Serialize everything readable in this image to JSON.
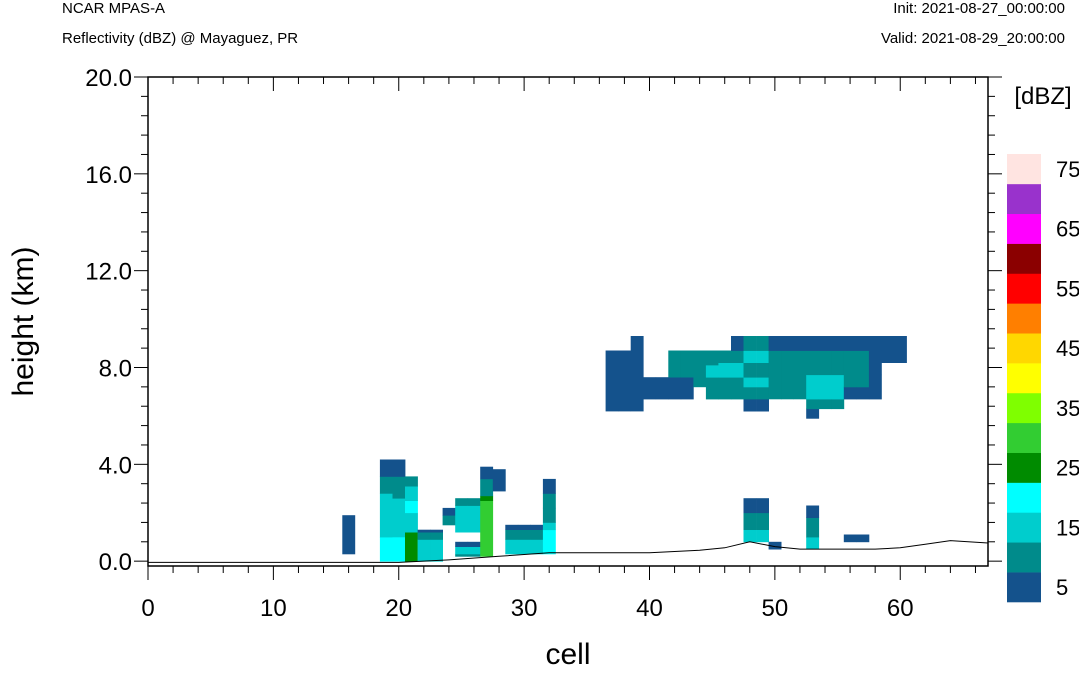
{
  "header": {
    "model": "NCAR MPAS-A",
    "field": "Reflectivity (dBZ) @ Mayaguez, PR",
    "init": "Init: 2021-08-27_00:00:00",
    "valid": "Valid: 2021-08-29_20:00:00"
  },
  "chart_data": {
    "type": "heatmap",
    "xlabel": "cell",
    "ylabel": "height (km)",
    "xlim": [
      0,
      67
    ],
    "ylim": [
      -0.2,
      20.0
    ],
    "x_ticks": [
      "0",
      "10",
      "20",
      "30",
      "40",
      "50",
      "60"
    ],
    "y_ticks": [
      "0.0",
      "4.0",
      "8.0",
      "12.0",
      "16.0",
      "20.0"
    ],
    "y_tick_values": [
      0,
      4,
      8,
      12,
      16,
      20
    ],
    "colorbar": {
      "title": "[dBZ]",
      "levels": [
        5,
        10,
        15,
        20,
        25,
        30,
        35,
        40,
        45,
        50,
        55,
        60,
        65,
        70,
        75
      ],
      "labels": [
        "5",
        "15",
        "25",
        "35",
        "45",
        "55",
        "65",
        "75"
      ],
      "colors": [
        "#14528c",
        "#008b8b",
        "#00cdcd",
        "#00ffff",
        "#008b00",
        "#32cd32",
        "#7fff00",
        "#ffff00",
        "#ffd700",
        "#ff7f00",
        "#ff0000",
        "#8b0000",
        "#ff00ff",
        "#9932cc",
        "#ffe4e1"
      ]
    },
    "legend_placement": "right",
    "cells": [
      [
        16,
        0.3,
        1.9,
        0
      ],
      [
        19,
        0.0,
        1.0,
        3
      ],
      [
        19,
        1.0,
        2.8,
        2
      ],
      [
        19,
        2.8,
        3.5,
        1
      ],
      [
        19,
        3.5,
        4.2,
        0
      ],
      [
        20,
        0.0,
        1.0,
        3
      ],
      [
        20,
        1.0,
        2.6,
        2
      ],
      [
        20,
        2.6,
        3.5,
        1
      ],
      [
        20,
        3.5,
        4.2,
        0
      ],
      [
        21,
        0.0,
        1.2,
        4
      ],
      [
        21,
        1.2,
        2.0,
        2
      ],
      [
        21,
        2.0,
        2.5,
        3
      ],
      [
        21,
        2.5,
        3.1,
        2
      ],
      [
        21,
        3.1,
        3.5,
        1
      ],
      [
        22,
        0.0,
        0.9,
        2
      ],
      [
        22,
        0.9,
        1.2,
        1
      ],
      [
        22,
        1.2,
        1.3,
        0
      ],
      [
        23,
        0.0,
        0.9,
        2
      ],
      [
        23,
        0.9,
        1.2,
        1
      ],
      [
        23,
        1.2,
        1.3,
        0
      ],
      [
        24,
        1.5,
        1.9,
        1
      ],
      [
        24,
        1.9,
        2.2,
        0
      ],
      [
        25,
        0.2,
        0.3,
        1
      ],
      [
        25,
        0.3,
        0.6,
        2
      ],
      [
        25,
        0.6,
        0.8,
        0
      ],
      [
        25,
        1.2,
        2.3,
        2
      ],
      [
        25,
        2.3,
        2.6,
        1
      ],
      [
        26,
        0.2,
        0.3,
        1
      ],
      [
        26,
        0.3,
        0.6,
        2
      ],
      [
        26,
        0.6,
        0.8,
        0
      ],
      [
        26,
        1.2,
        2.3,
        2
      ],
      [
        26,
        2.3,
        2.6,
        1
      ],
      [
        27,
        0.2,
        2.5,
        5
      ],
      [
        27,
        2.5,
        2.7,
        4
      ],
      [
        27,
        2.7,
        3.4,
        1
      ],
      [
        27,
        3.4,
        3.9,
        0
      ],
      [
        28,
        2.9,
        3.8,
        0
      ],
      [
        29,
        0.3,
        0.9,
        2
      ],
      [
        29,
        0.9,
        1.3,
        1
      ],
      [
        29,
        1.3,
        1.5,
        0
      ],
      [
        30,
        0.3,
        0.9,
        2
      ],
      [
        30,
        0.9,
        1.3,
        1
      ],
      [
        30,
        1.3,
        1.5,
        0
      ],
      [
        31,
        0.3,
        0.9,
        2
      ],
      [
        31,
        0.9,
        1.3,
        1
      ],
      [
        31,
        1.3,
        1.5,
        0
      ],
      [
        32,
        0.3,
        1.3,
        3
      ],
      [
        32,
        1.3,
        1.6,
        2
      ],
      [
        32,
        1.6,
        2.2,
        1
      ],
      [
        32,
        2.2,
        2.8,
        1
      ],
      [
        32,
        2.8,
        3.4,
        0
      ],
      [
        37,
        6.2,
        8.7,
        0
      ],
      [
        38,
        6.2,
        8.7,
        0
      ],
      [
        39,
        6.2,
        9.3,
        0
      ],
      [
        40,
        6.7,
        7.6,
        0
      ],
      [
        41,
        6.7,
        7.6,
        0
      ],
      [
        42,
        6.7,
        7.6,
        0
      ],
      [
        42,
        7.6,
        8.7,
        1
      ],
      [
        43,
        6.7,
        7.6,
        0
      ],
      [
        43,
        7.6,
        8.7,
        1
      ],
      [
        44,
        7.2,
        8.7,
        1
      ],
      [
        45,
        6.7,
        7.6,
        1
      ],
      [
        45,
        7.6,
        8.1,
        2
      ],
      [
        45,
        8.1,
        8.7,
        1
      ],
      [
        46,
        6.7,
        7.6,
        1
      ],
      [
        46,
        7.6,
        8.2,
        2
      ],
      [
        46,
        8.2,
        8.7,
        1
      ],
      [
        47,
        6.7,
        7.6,
        1
      ],
      [
        47,
        7.6,
        8.2,
        2
      ],
      [
        47,
        8.2,
        8.7,
        1
      ],
      [
        47,
        8.7,
        9.3,
        0
      ],
      [
        48,
        6.2,
        6.7,
        0
      ],
      [
        48,
        6.7,
        7.2,
        1
      ],
      [
        48,
        7.2,
        7.6,
        2
      ],
      [
        48,
        7.6,
        8.2,
        1
      ],
      [
        48,
        8.2,
        8.7,
        2
      ],
      [
        48,
        8.7,
        9.3,
        1
      ],
      [
        49,
        6.2,
        6.7,
        0
      ],
      [
        49,
        6.7,
        7.2,
        1
      ],
      [
        49,
        7.2,
        7.6,
        2
      ],
      [
        49,
        7.6,
        8.2,
        1
      ],
      [
        49,
        8.2,
        8.7,
        2
      ],
      [
        49,
        8.7,
        9.3,
        1
      ],
      [
        50,
        6.7,
        8.7,
        1
      ],
      [
        50,
        8.7,
        9.3,
        0
      ],
      [
        51,
        6.7,
        8.7,
        1
      ],
      [
        51,
        8.7,
        9.3,
        0
      ],
      [
        52,
        6.7,
        8.7,
        1
      ],
      [
        52,
        8.7,
        9.3,
        0
      ],
      [
        53,
        5.9,
        6.3,
        0
      ],
      [
        53,
        6.3,
        6.7,
        1
      ],
      [
        53,
        6.7,
        7.7,
        2
      ],
      [
        53,
        7.7,
        8.7,
        1
      ],
      [
        53,
        8.7,
        9.3,
        0
      ],
      [
        54,
        6.3,
        6.7,
        1
      ],
      [
        54,
        6.7,
        7.7,
        2
      ],
      [
        54,
        7.7,
        8.7,
        1
      ],
      [
        54,
        8.7,
        9.3,
        0
      ],
      [
        55,
        6.3,
        6.7,
        1
      ],
      [
        55,
        6.7,
        7.7,
        2
      ],
      [
        55,
        7.7,
        8.7,
        1
      ],
      [
        55,
        8.7,
        9.3,
        0
      ],
      [
        56,
        6.7,
        7.2,
        0
      ],
      [
        56,
        7.2,
        7.7,
        1
      ],
      [
        56,
        7.7,
        8.7,
        1
      ],
      [
        56,
        8.7,
        9.3,
        0
      ],
      [
        57,
        6.7,
        7.2,
        0
      ],
      [
        57,
        7.2,
        7.7,
        1
      ],
      [
        57,
        7.7,
        8.7,
        1
      ],
      [
        57,
        8.7,
        9.3,
        0
      ],
      [
        58,
        6.7,
        7.7,
        0
      ],
      [
        58,
        7.7,
        8.7,
        0
      ],
      [
        58,
        8.7,
        9.3,
        0
      ],
      [
        59,
        8.2,
        9.3,
        0
      ],
      [
        60,
        8.2,
        9.3,
        0
      ],
      [
        48,
        0.8,
        1.3,
        2
      ],
      [
        48,
        1.3,
        2.0,
        1
      ],
      [
        48,
        2.0,
        2.6,
        0
      ],
      [
        49,
        0.8,
        1.3,
        2
      ],
      [
        49,
        1.3,
        2.0,
        1
      ],
      [
        49,
        2.0,
        2.6,
        0
      ],
      [
        50,
        0.5,
        0.8,
        0
      ],
      [
        53,
        0.5,
        1.0,
        2
      ],
      [
        53,
        1.0,
        1.8,
        1
      ],
      [
        53,
        1.8,
        2.3,
        0
      ],
      [
        56,
        0.8,
        1.1,
        0
      ],
      [
        57,
        0.8,
        1.1,
        0
      ]
    ]
  }
}
